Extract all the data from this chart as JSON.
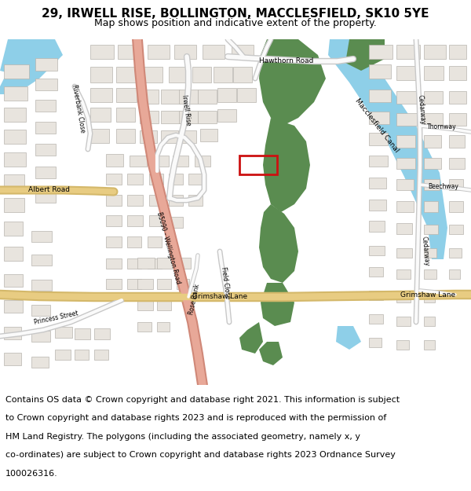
{
  "title_line1": "29, IRWELL RISE, BOLLINGTON, MACCLESFIELD, SK10 5YE",
  "title_line2": "Map shows position and indicative extent of the property.",
  "footer_lines": [
    "Contains OS data © Crown copyright and database right 2021. This information is subject",
    "to Crown copyright and database rights 2023 and is reproduced with the permission of",
    "HM Land Registry. The polygons (including the associated geometry, namely x, y",
    "co-ordinates) are subject to Crown copyright and database rights 2023 Ordnance Survey",
    "100026316."
  ],
  "map_bg": "#f5f3f0",
  "road_yellow": "#e8cc82",
  "road_yellow_outline": "#d4b86a",
  "road_salmon": "#e8a898",
  "road_salmon_outline": "#d08878",
  "road_white": "#fafafa",
  "road_grey_outline": "#c8c8c8",
  "green_color": "#5a8c50",
  "canal_color": "#8ecfe8",
  "building_fill": "#e8e4de",
  "building_edge": "#b8b4ae",
  "highlight_red": "#cc1111",
  "water_blue": "#8ecfe8",
  "title_fontsize": 11,
  "subtitle_fontsize": 9,
  "footer_fontsize": 8,
  "label_fontsize": 6.5,
  "small_label_fontsize": 5.5
}
